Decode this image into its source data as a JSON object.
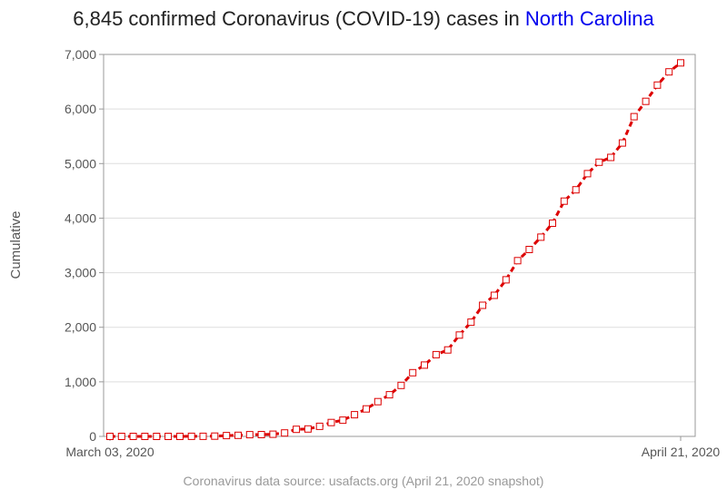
{
  "header": {
    "title_prefix": "6,845 confirmed Coronavirus (COVID-19) cases in ",
    "title_state": "North Carolina",
    "state_color": "#0000ee"
  },
  "footer": {
    "source": "Coronavirus data source: usafacts.org (April 21, 2020 snapshot)"
  },
  "chart_data": {
    "type": "line",
    "title": "6,845 confirmed Coronavirus (COVID-19) cases in North Carolina",
    "xlabel": "",
    "ylabel": "Cumulative",
    "x_tick_labels": [
      "March 03, 2020",
      "April 21, 2020"
    ],
    "y_tick_labels": [
      "0",
      "1,000",
      "2,000",
      "3,000",
      "4,000",
      "5,000",
      "6,000",
      "7,000"
    ],
    "ylim": [
      0,
      7000
    ],
    "grid": "horizontal",
    "line_color": "#dd0000",
    "line_style": "dashed",
    "marker": "hollow-square",
    "x": [
      "2020-03-03",
      "2020-03-04",
      "2020-03-05",
      "2020-03-06",
      "2020-03-07",
      "2020-03-08",
      "2020-03-09",
      "2020-03-10",
      "2020-03-11",
      "2020-03-12",
      "2020-03-13",
      "2020-03-14",
      "2020-03-15",
      "2020-03-16",
      "2020-03-17",
      "2020-03-18",
      "2020-03-19",
      "2020-03-20",
      "2020-03-21",
      "2020-03-22",
      "2020-03-23",
      "2020-03-24",
      "2020-03-25",
      "2020-03-26",
      "2020-03-27",
      "2020-03-28",
      "2020-03-29",
      "2020-03-30",
      "2020-03-31",
      "2020-04-01",
      "2020-04-02",
      "2020-04-03",
      "2020-04-04",
      "2020-04-05",
      "2020-04-06",
      "2020-04-07",
      "2020-04-08",
      "2020-04-09",
      "2020-04-10",
      "2020-04-11",
      "2020-04-12",
      "2020-04-13",
      "2020-04-14",
      "2020-04-15",
      "2020-04-16",
      "2020-04-17",
      "2020-04-18",
      "2020-04-19",
      "2020-04-20",
      "2020-04-21"
    ],
    "series": [
      {
        "values": [
          0,
          0,
          0,
          0,
          0,
          0,
          0,
          2,
          2,
          5,
          15,
          20,
          32,
          33,
          40,
          63,
          130,
          137,
          184,
          255,
          297,
          398,
          504,
          636,
          763,
          935,
          1167,
          1307,
          1498,
          1584,
          1857,
          2093,
          2402,
          2585,
          2870,
          3221,
          3426,
          3651,
          3908,
          4312,
          4520,
          4816,
          5024,
          5113,
          5378,
          5859,
          6140,
          6438,
          6681,
          6845
        ]
      }
    ]
  }
}
